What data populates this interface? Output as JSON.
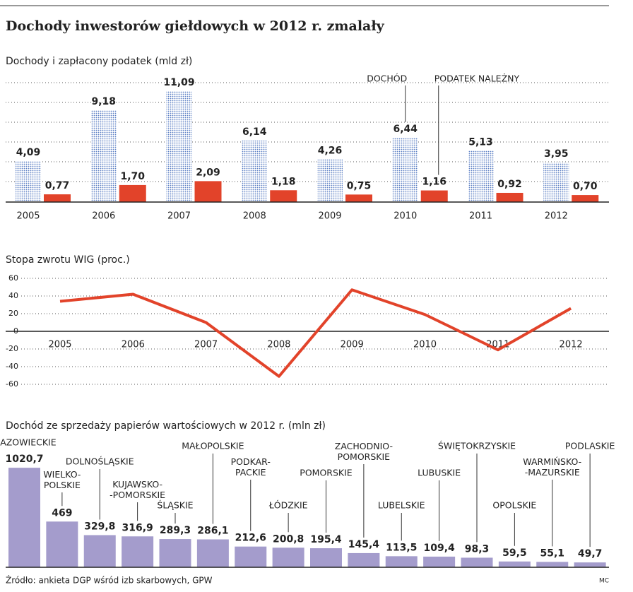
{
  "title": "Dochody inwestorów giełdowych w 2012 r. zmalały",
  "chart_data": [
    {
      "type": "bar",
      "title": "Dochody i zapłacony podatek (mld zł)",
      "categories": [
        "2005",
        "2006",
        "2007",
        "2008",
        "2009",
        "2010",
        "2011",
        "2012"
      ],
      "series": [
        {
          "name": "DOCHÓD",
          "color": "#5b7fc4",
          "pattern": "dotted",
          "values": [
            4.09,
            9.18,
            11.09,
            6.14,
            4.26,
            6.44,
            5.13,
            3.95
          ],
          "value_labels": [
            "4,09",
            "9,18",
            "11,09",
            "6,14",
            "4,26",
            "6,44",
            "5,13",
            "3,95"
          ]
        },
        {
          "name": "PODATEK NALEŻNY",
          "color": "#e2432a",
          "values": [
            0.77,
            1.7,
            2.09,
            1.18,
            0.75,
            1.16,
            0.92,
            0.7
          ],
          "value_labels": [
            "0,77",
            "1,70",
            "2,09",
            "1,18",
            "0,75",
            "1,16",
            "0,92",
            "0,70"
          ]
        }
      ],
      "ylim": [
        0,
        12
      ]
    },
    {
      "type": "line",
      "title": "Stopa zwrotu WIG (proc.)",
      "categories": [
        "2005",
        "2006",
        "2007",
        "2008",
        "2009",
        "2010",
        "2011",
        "2012"
      ],
      "values": [
        34,
        42,
        10,
        -51,
        47,
        19,
        -21,
        26
      ],
      "color": "#e2432a",
      "ylim": [
        -60,
        60
      ],
      "yticks": [
        60,
        40,
        20,
        0,
        -20,
        -40,
        -60
      ],
      "grid": true
    },
    {
      "type": "bar",
      "title": "Dochód ze sprzedaży papierów wartościowych w 2012 r. (mln zł)",
      "categories": [
        "MAZOWIECKIE",
        "WIELKO-\nPOLSKIE",
        "DOLNOŚLĄSKIE",
        "KUJAWSKO-\n-POMORSKIE",
        "ŚLĄSKIE",
        "MAŁOPOLSKIE",
        "PODKAR-\nPACKIE",
        "ŁÓDZKIE",
        "POMORSKIE",
        "ZACHODNIO-\nPOMORSKIE",
        "LUBELSKIE",
        "LUBUSKIE",
        "ŚWIĘTOKRZYSKIE",
        "OPOLSKIE",
        "WARMIŃSKO-\n-MAZURSKIE",
        "PODLASKIE"
      ],
      "values": [
        1020.7,
        469,
        329.8,
        316.9,
        289.3,
        286.1,
        212.6,
        200.8,
        195.4,
        145.4,
        113.5,
        109.4,
        98.3,
        59.5,
        55.1,
        49.7
      ],
      "value_labels": [
        "1020,7",
        "469",
        "329,8",
        "316,9",
        "289,3",
        "286,1",
        "212,6",
        "200,8",
        "195,4",
        "145,4",
        "113,5",
        "109,4",
        "98,3",
        "59,5",
        "55,1",
        "49,7"
      ],
      "color": "#a49ccc",
      "ylim": [
        0,
        1000
      ]
    }
  ],
  "source": "Źródło: ankieta DGP wśród izb skarbowych, GPW",
  "credit": "MC"
}
